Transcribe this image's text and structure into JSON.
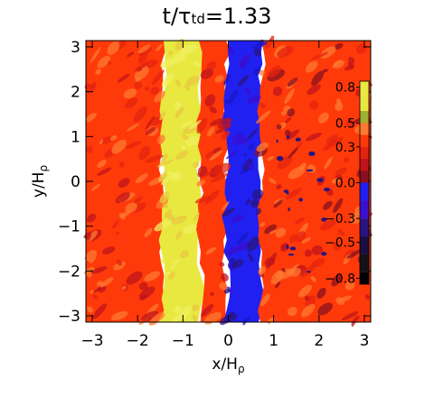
{
  "chart_data": {
    "type": "heatmap",
    "title": {
      "lhs": "t/τ",
      "sub": "td",
      "rhs": "=1.33"
    },
    "xlabel": {
      "main": "x/H",
      "sub": "ρ"
    },
    "ylabel": {
      "main": "y/H",
      "sub": "ρ"
    },
    "xlim": [
      -3.14,
      3.14
    ],
    "ylim": [
      -3.14,
      3.14
    ],
    "x_ticks": [
      {
        "value": -3,
        "label": "−3"
      },
      {
        "value": -2,
        "label": "−2"
      },
      {
        "value": -1,
        "label": "−1"
      },
      {
        "value": 0,
        "label": "0"
      },
      {
        "value": 1,
        "label": "1"
      },
      {
        "value": 2,
        "label": "2"
      },
      {
        "value": 3,
        "label": "3"
      }
    ],
    "y_ticks": [
      {
        "value": -3,
        "label": "−3"
      },
      {
        "value": -2,
        "label": "−2"
      },
      {
        "value": -1,
        "label": "−1"
      },
      {
        "value": 0,
        "label": "0"
      },
      {
        "value": 1,
        "label": "1"
      },
      {
        "value": 2,
        "label": "2"
      },
      {
        "value": 3,
        "label": "3"
      }
    ],
    "colorbar": {
      "range": [
        -0.85,
        0.85
      ],
      "tick_labels": [
        {
          "value": 0.8,
          "label": "0.8"
        },
        {
          "value": 0.5,
          "label": "0.5"
        },
        {
          "value": 0.3,
          "label": "0.3"
        },
        {
          "value": 0.0,
          "label": "0.0"
        },
        {
          "value": -0.3,
          "label": "−0.3"
        },
        {
          "value": -0.5,
          "label": "−0.5"
        },
        {
          "value": -0.8,
          "label": "−0.8"
        }
      ],
      "levels": [
        {
          "from": -0.85,
          "to": -0.75,
          "color": "#000000"
        },
        {
          "from": -0.75,
          "to": -0.6,
          "color": "#141418"
        },
        {
          "from": -0.6,
          "to": -0.45,
          "color": "#1a0f40"
        },
        {
          "from": -0.45,
          "to": -0.3,
          "color": "#2a1480"
        },
        {
          "from": -0.3,
          "to": -0.15,
          "color": "#3a0fd0"
        },
        {
          "from": -0.15,
          "to": 0.0,
          "color": "#2020f0"
        },
        {
          "from": 0.0,
          "to": 0.1,
          "color": "#8a1020"
        },
        {
          "from": 0.1,
          "to": 0.2,
          "color": "#c0141a"
        },
        {
          "from": 0.2,
          "to": 0.3,
          "color": "#e3240f"
        },
        {
          "from": 0.3,
          "to": 0.4,
          "color": "#ff3a0a"
        },
        {
          "from": 0.4,
          "to": 0.5,
          "color": "#ff7a30"
        },
        {
          "from": 0.5,
          "to": 0.6,
          "color": "#a0b030"
        },
        {
          "from": 0.6,
          "to": 0.85,
          "color": "#e8e840"
        }
      ]
    },
    "bands": [
      {
        "x_from": -3.14,
        "x_to": -1.45,
        "value": 0.3,
        "color": "#ff3a0a"
      },
      {
        "x_from": -1.45,
        "x_to": -0.62,
        "value": 0.7,
        "color": "#e8e840"
      },
      {
        "x_from": -0.62,
        "x_to": -0.05,
        "value": 0.3,
        "color": "#ff3a0a"
      },
      {
        "x_from": -0.05,
        "x_to": 0.72,
        "value": -0.1,
        "color": "#2020f0"
      },
      {
        "x_from": 0.72,
        "x_to": 3.14,
        "value": 0.3,
        "color": "#ff3a0a"
      }
    ],
    "grid": false
  }
}
